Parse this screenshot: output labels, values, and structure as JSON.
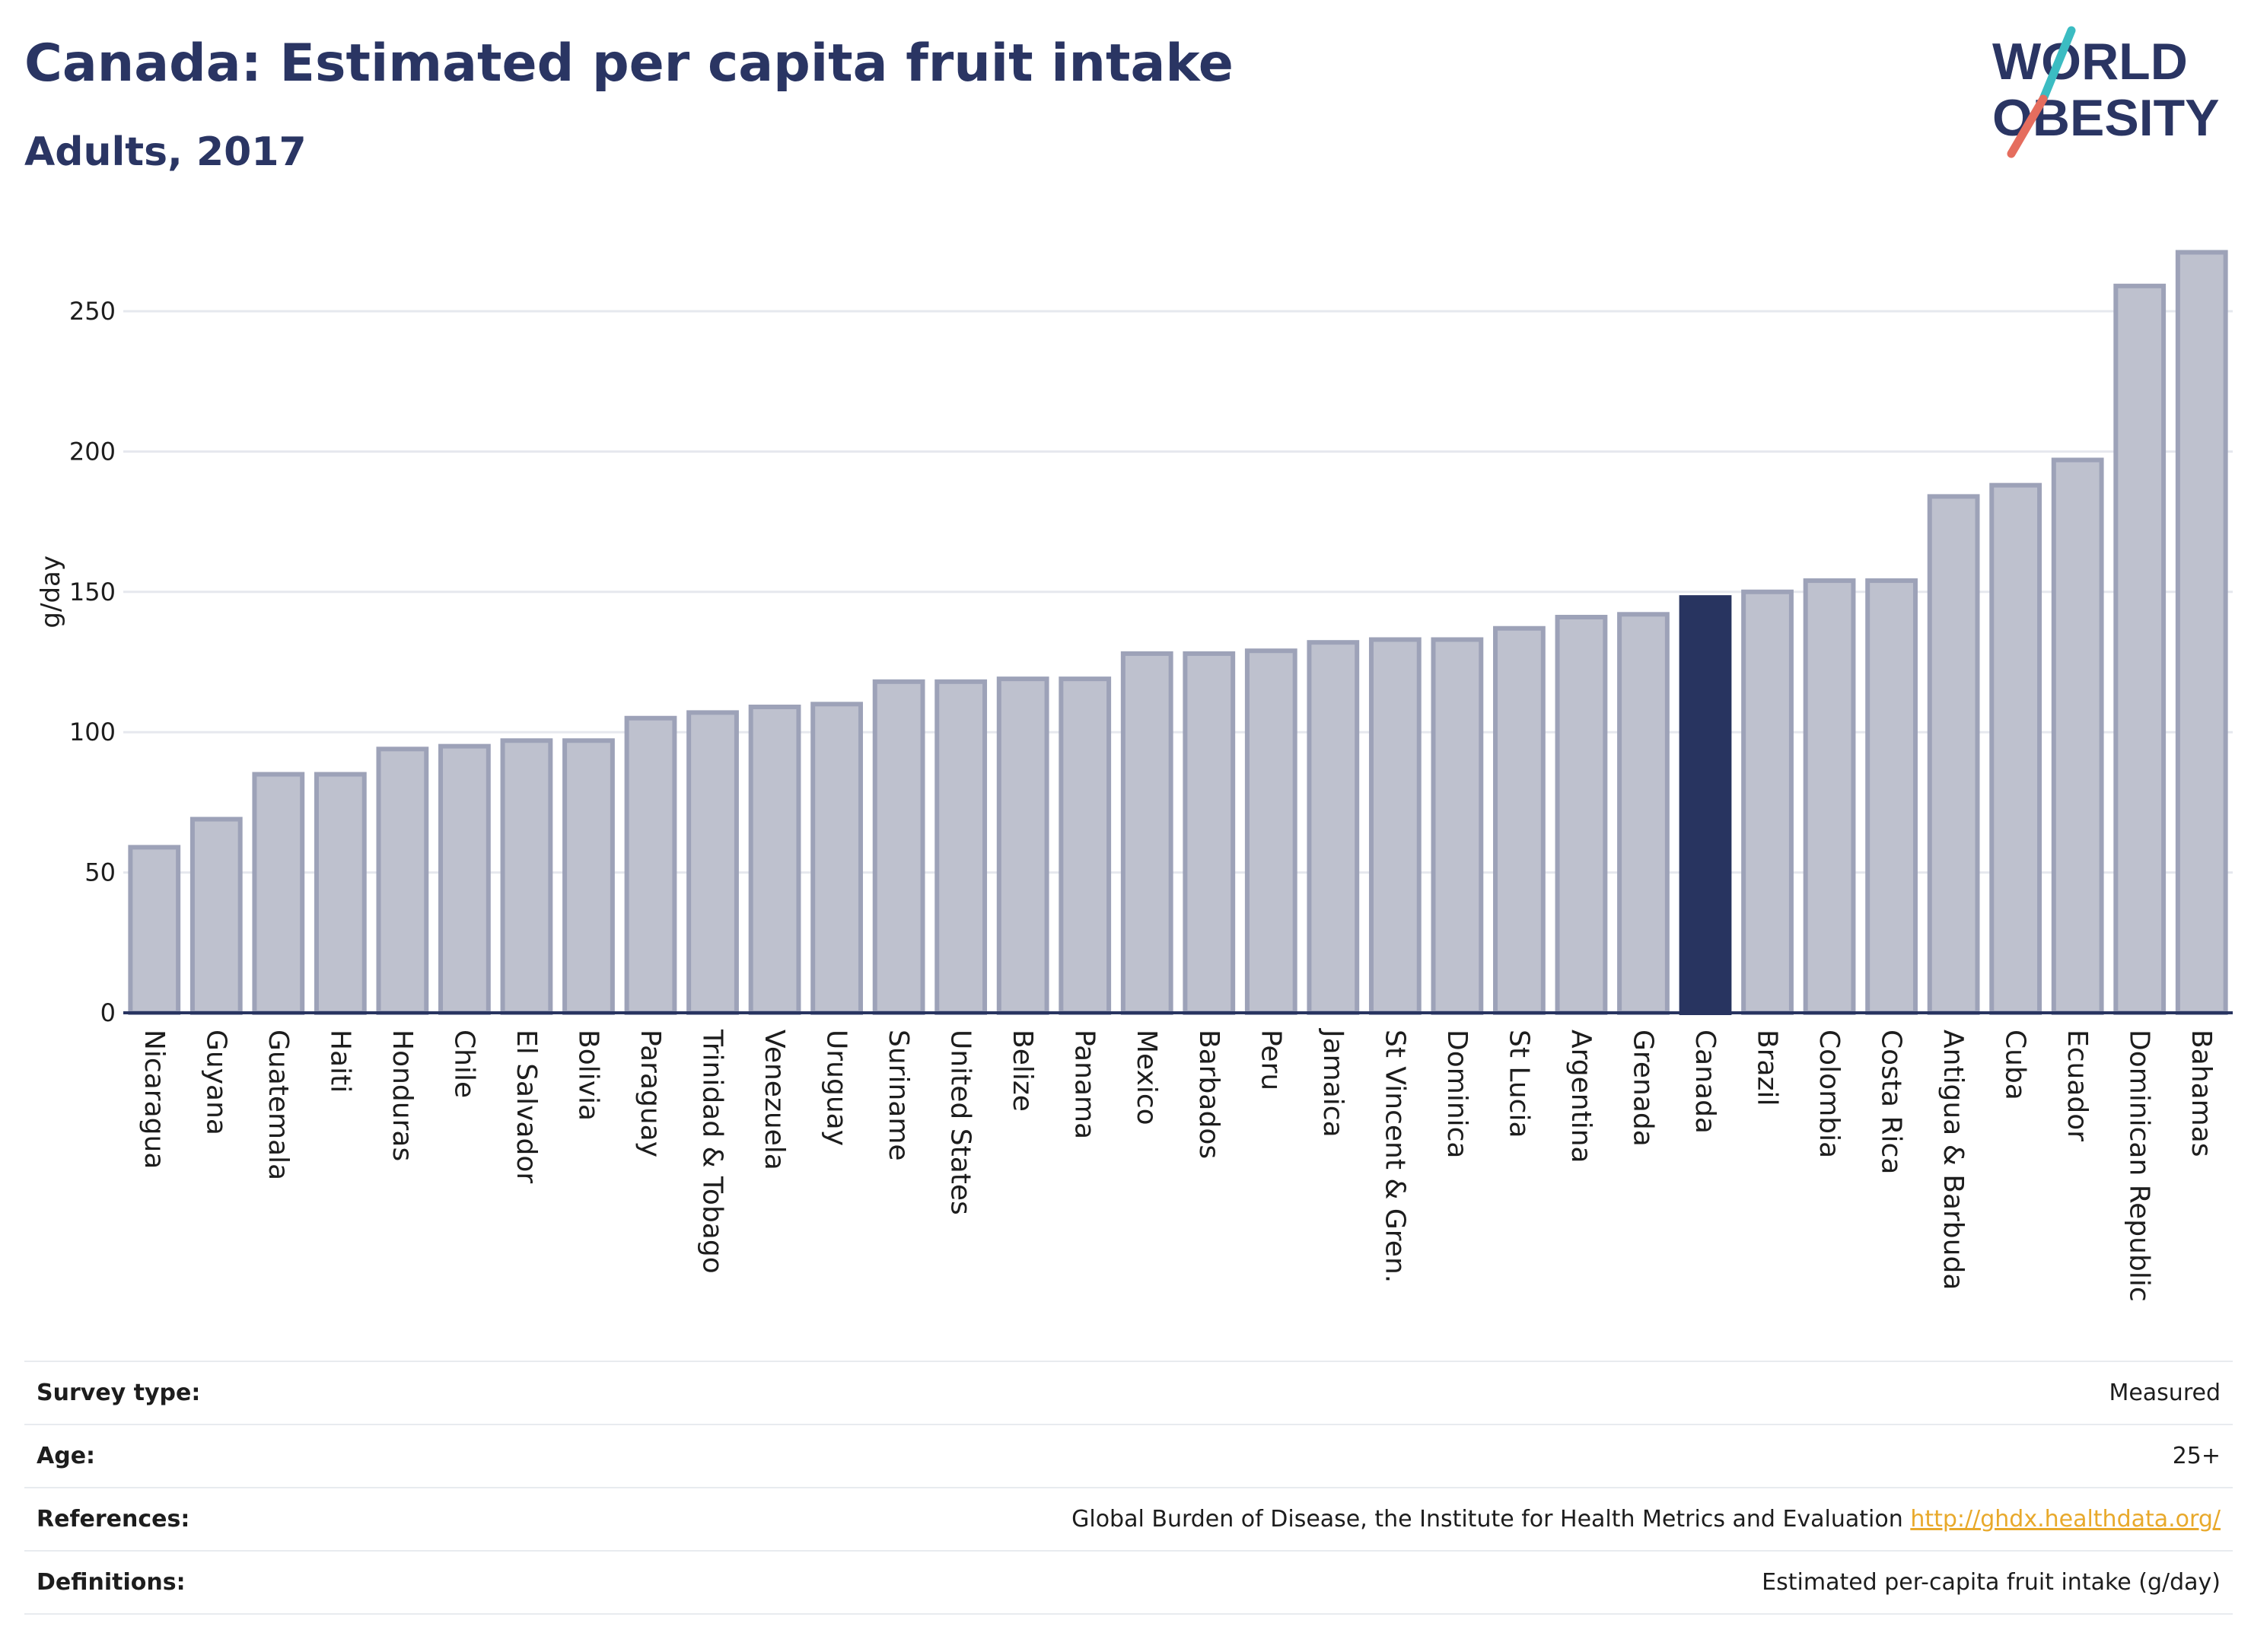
{
  "header": {
    "title": "Canada: Estimated per capita fruit intake",
    "subtitle": "Adults, 2017"
  },
  "logo": {
    "line1": "WORLD",
    "line2": "OBESITY",
    "colors": {
      "text": "#2a3563",
      "slash_top": "#3bbcc2",
      "slash_bottom": "#e56d5e"
    }
  },
  "colors": {
    "bar_fill": "#bec1ce",
    "bar_stroke": "#9da2b8",
    "highlight": "#283460",
    "grid": "#e6e8ee",
    "axis": "#283460"
  },
  "chart_data": {
    "type": "bar",
    "ylabel": "g/day",
    "ylim": [
      0,
      272
    ],
    "yticks": [
      0,
      50,
      100,
      150,
      200,
      250
    ],
    "grid": true,
    "highlight": "Canada",
    "categories": [
      "Nicaragua",
      "Guyana",
      "Guatemala",
      "Haiti",
      "Honduras",
      "Chile",
      "El Salvador",
      "Bolivia",
      "Paraguay",
      "Trinidad & Tobago",
      "Venezuela",
      "Uruguay",
      "Suriname",
      "United States",
      "Belize",
      "Panama",
      "Mexico",
      "Barbados",
      "Peru",
      "Jamaica",
      "St Vincent & Gren.",
      "Dominica",
      "St Lucia",
      "Argentina",
      "Grenada",
      "Canada",
      "Brazil",
      "Colombia",
      "Costa Rica",
      "Antigua & Barbuda",
      "Cuba",
      "Ecuador",
      "Dominican Republic",
      "Bahamas"
    ],
    "values": [
      59,
      69,
      85,
      85,
      94,
      95,
      97,
      97,
      105,
      107,
      109,
      110,
      118,
      118,
      119,
      119,
      128,
      128,
      129,
      132,
      133,
      133,
      137,
      141,
      142,
      148,
      150,
      154,
      154,
      184,
      188,
      197,
      259,
      271
    ]
  },
  "info": [
    {
      "label": "Survey type:",
      "value": "Measured"
    },
    {
      "label": "Age:",
      "value": "25+"
    },
    {
      "label": "References:",
      "value": "Global Burden of Disease, the Institute for Health Metrics and Evaluation",
      "link": "http://ghdx.healthdata.org/"
    },
    {
      "label": "Definitions:",
      "value": "Estimated per-capita fruit intake (g/day)"
    }
  ]
}
